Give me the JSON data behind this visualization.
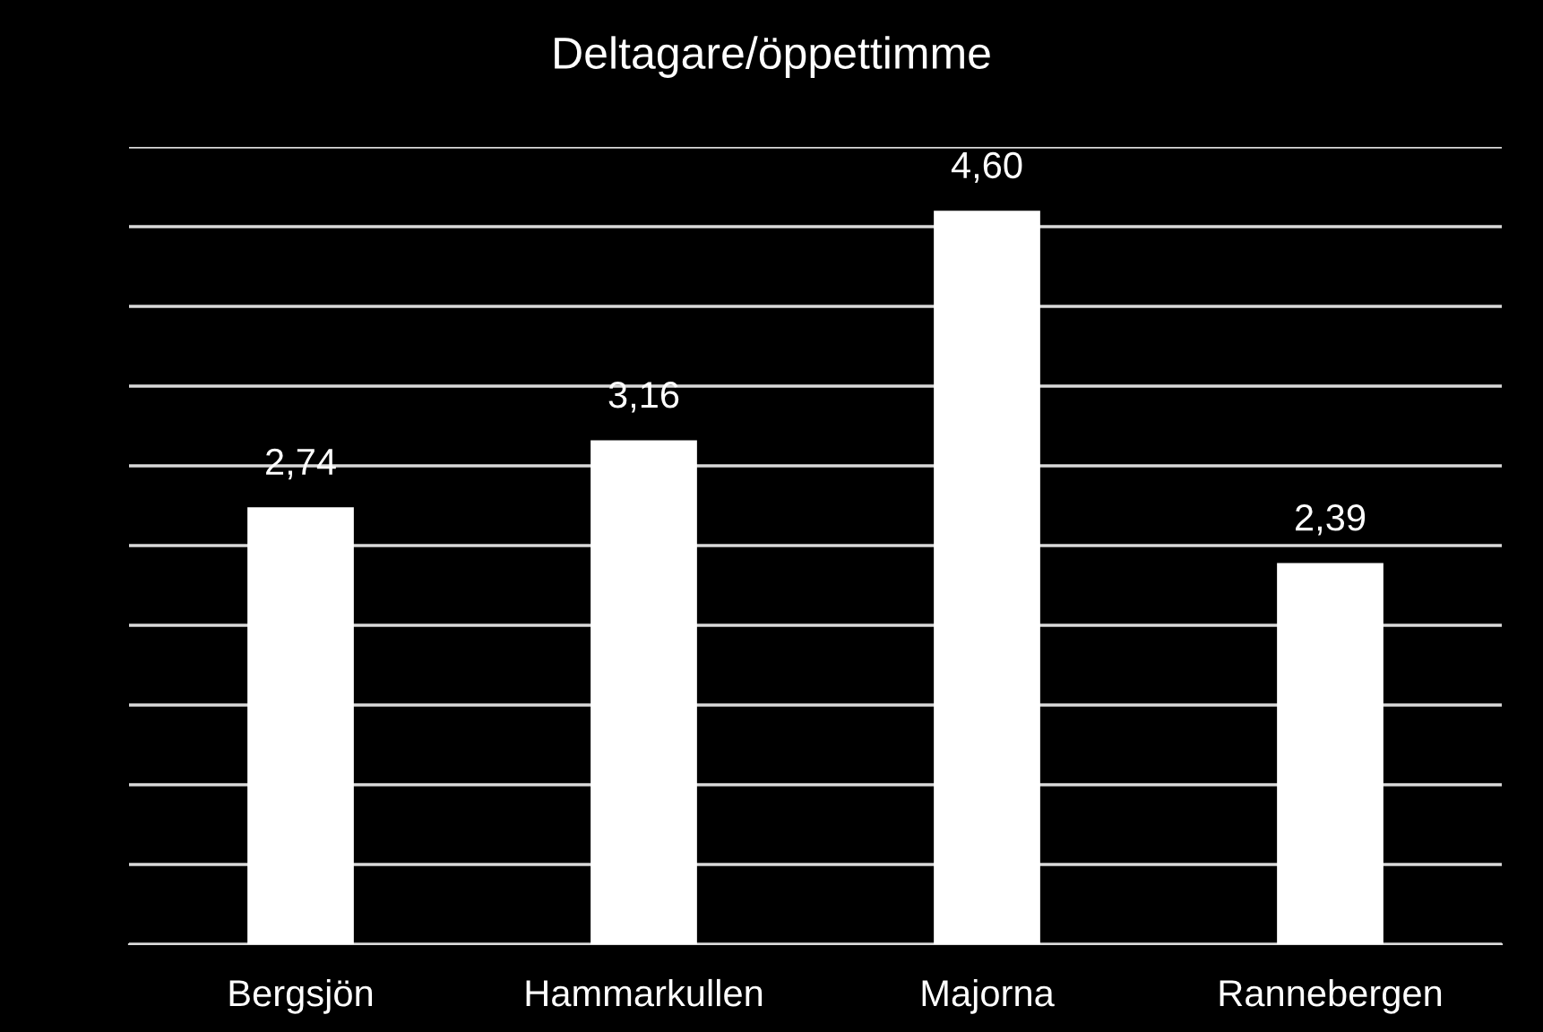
{
  "chart_data": {
    "type": "bar",
    "title": "Deltagare/öppettimme",
    "categories": [
      "Bergsjön",
      "Hammarkullen",
      "Majorna",
      "Rannebergen"
    ],
    "values": [
      2.74,
      3.16,
      4.6,
      2.39
    ],
    "value_labels": [
      "2,74",
      "3,16",
      "4,60",
      "2,39"
    ],
    "color": "#ffffff",
    "ylim": [
      0,
      5
    ],
    "yticks": [
      {
        "value": 0,
        "label": null
      },
      {
        "value": 0.5,
        "label": null
      },
      {
        "value": 1,
        "label": null
      },
      {
        "value": 1.5,
        "label": null
      },
      {
        "value": 2,
        "label": null
      },
      {
        "value": 2.5,
        "label": null
      },
      {
        "value": 3,
        "label": null
      },
      {
        "value": 3.5,
        "label": null
      },
      {
        "value": 4,
        "label": null
      },
      {
        "value": 4.5,
        "label": null
      },
      {
        "value": 5,
        "label": null
      }
    ],
    "tick_labels": "x",
    "grid": "y"
  }
}
